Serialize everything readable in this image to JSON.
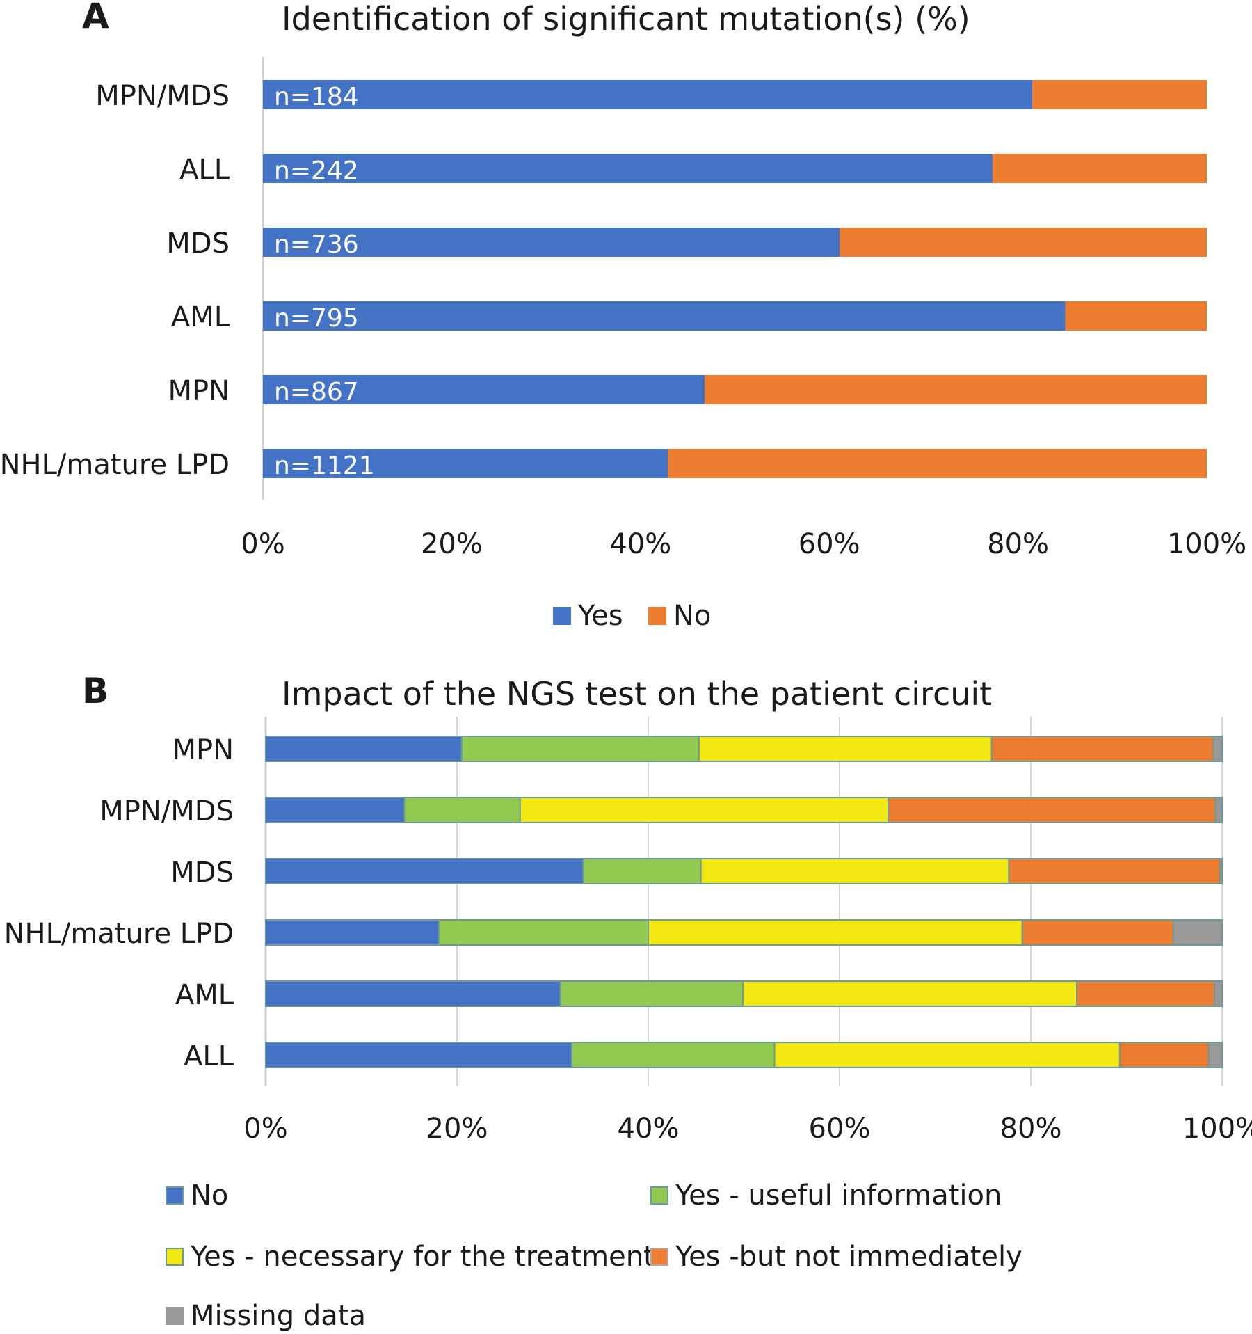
{
  "panel_a": {
    "letter": "A",
    "title": "Identification of significant mutation(s) (%)",
    "legend": [
      {
        "label": "Yes",
        "color": "#4472C4"
      },
      {
        "label": "No",
        "color": "#ED7D31"
      }
    ]
  },
  "panel_b": {
    "letter": "B",
    "title": "Impact of the NGS test on the patient circuit",
    "legend": [
      {
        "label": "No",
        "color": "#4472C4"
      },
      {
        "label": "Yes - useful information",
        "color": "#92C94F"
      },
      {
        "label": "Yes - necessary for the treatment",
        "color": "#F2E813"
      },
      {
        "label": "Yes -but not immediately",
        "color": "#ED7D31"
      },
      {
        "label": "Missing data",
        "color": "#999999"
      }
    ]
  },
  "chart_data": [
    {
      "type": "bar",
      "orientation": "horizontal",
      "stacked": "percent",
      "title": "Identification of significant mutation(s) (%)",
      "categories": [
        "MPN/MDS",
        "ALL",
        "MDS",
        "AML",
        "MPN",
        "NHL/mature LPD"
      ],
      "bar_labels": [
        "n=184",
        "n=242",
        "n=736",
        "n=795",
        "n=867",
        "n=1121"
      ],
      "series": [
        {
          "name": "Yes",
          "color": "#4472C4",
          "values": [
            81.5,
            77.3,
            61.1,
            85.0,
            46.8,
            42.9
          ]
        },
        {
          "name": "No",
          "color": "#ED7D31",
          "values": [
            18.5,
            22.7,
            38.9,
            15.0,
            53.2,
            57.1
          ]
        }
      ],
      "xticks": [
        "0%",
        "20%",
        "40%",
        "60%",
        "80%",
        "100%"
      ],
      "xlim": [
        0,
        100
      ],
      "grid": false,
      "legend_position": "bottom"
    },
    {
      "type": "bar",
      "orientation": "horizontal",
      "stacked": "percent",
      "title": "Impact of the NGS test on the patient circuit",
      "categories": [
        "MPN",
        "MPN/MDS",
        "MDS",
        "NHL/mature LPD",
        "AML",
        "ALL"
      ],
      "series": [
        {
          "name": "No",
          "color": "#4472C4",
          "values": [
            20.5,
            14.5,
            33.2,
            18.1,
            30.8,
            32.0
          ]
        },
        {
          "name": "Yes - useful information",
          "color": "#92C94F",
          "values": [
            24.8,
            12.1,
            12.3,
            21.9,
            19.1,
            21.2
          ]
        },
        {
          "name": "Yes - necessary for the treatment",
          "color": "#F2E813",
          "values": [
            30.6,
            38.5,
            32.2,
            39.1,
            34.9,
            36.1
          ]
        },
        {
          "name": "Yes -but not immediately",
          "color": "#ED7D31",
          "values": [
            23.2,
            34.2,
            22.1,
            15.8,
            14.4,
            9.3
          ]
        },
        {
          "name": "Missing data",
          "color": "#999999",
          "values": [
            0.9,
            0.7,
            0.2,
            5.1,
            0.8,
            1.4
          ]
        }
      ],
      "xticks": [
        "0%",
        "20%",
        "40%",
        "60%",
        "80%",
        "100%"
      ],
      "xlim": [
        0,
        100
      ],
      "grid": true,
      "legend_position": "bottom"
    }
  ]
}
